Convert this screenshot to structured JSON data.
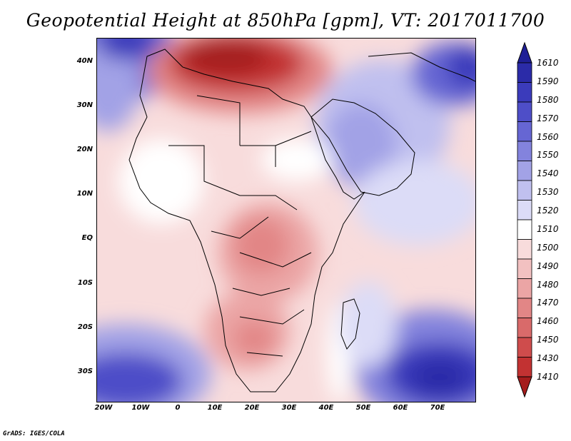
{
  "title": "Geopotential Height at 850hPa [gpm], VT: 2017011700",
  "credit": "GrADS: IGES/COLA",
  "lat_labels": [
    "40N",
    "30N",
    "20N",
    "10N",
    "EQ",
    "10S",
    "20S",
    "30S"
  ],
  "lon_labels": [
    "20W",
    "10W",
    "0",
    "10E",
    "20E",
    "30E",
    "40E",
    "50E",
    "60E",
    "70E"
  ],
  "colorbar": {
    "levels": [
      "1610",
      "1590",
      "1580",
      "1570",
      "1560",
      "1550",
      "1540",
      "1530",
      "1520",
      "1510",
      "1500",
      "1490",
      "1480",
      "1470",
      "1460",
      "1450",
      "1430",
      "1410"
    ],
    "colors": [
      "#1f1f96",
      "#2b2ba8",
      "#3b3bbb",
      "#4e4ec8",
      "#6666d3",
      "#8383dd",
      "#a2a2e6",
      "#c0c0ef",
      "#dcdcf7",
      "#ffffff",
      "#f8dcdc",
      "#f2c1c1",
      "#eba5a5",
      "#e28686",
      "#d96a6a",
      "#cf4c4c",
      "#c23232",
      "#a51c1c"
    ]
  },
  "map": {
    "region": "Africa and surrounding seas",
    "variable": "850hPa geopotential height"
  }
}
